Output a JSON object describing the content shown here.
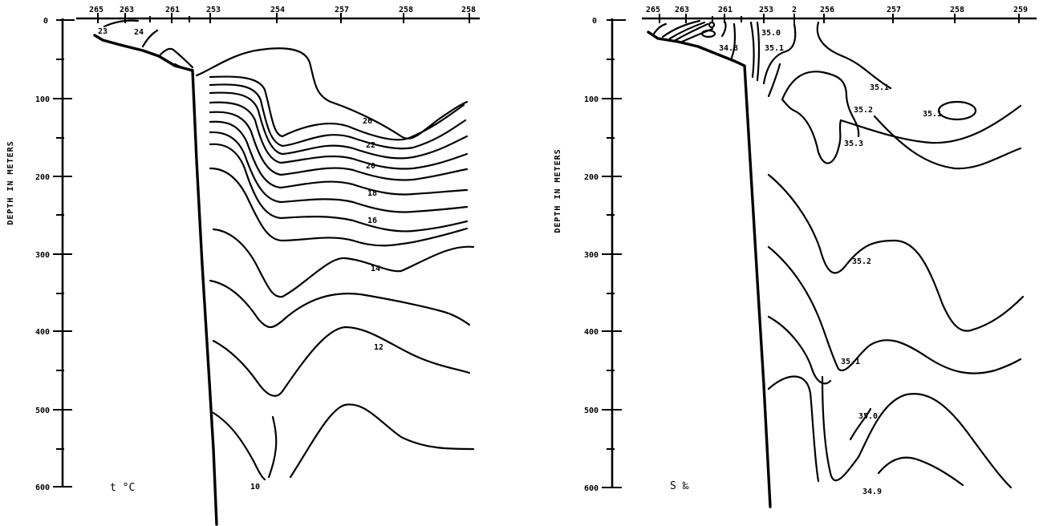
{
  "chart_data": [
    {
      "type": "contour",
      "panel": "temperature",
      "ylabel": "DEPTH IN METERS",
      "variable_label": "t °C",
      "y_ticks": [
        0,
        100,
        200,
        300,
        400,
        500,
        600
      ],
      "y_tick_labels": [
        "0",
        "100",
        "200",
        "300",
        "400",
        "500",
        "600"
      ],
      "ylim": [
        0,
        600
      ],
      "stations": [
        "265",
        "263",
        "261",
        "253",
        "254",
        "257",
        "258",
        "258"
      ],
      "contour_labels": [
        "23",
        "24",
        "26",
        "22",
        "20",
        "18",
        "16",
        "14",
        "12",
        "10"
      ]
    },
    {
      "type": "contour",
      "panel": "salinity",
      "ylabel": "DEPTH IN METERS",
      "variable_label": "S ‰",
      "y_ticks": [
        0,
        100,
        200,
        300,
        400,
        500,
        600
      ],
      "y_tick_labels": [
        "0",
        "100",
        "200",
        "300",
        "400",
        "500",
        "600"
      ],
      "ylim": [
        0,
        600
      ],
      "stations": [
        "265",
        "263",
        "261",
        "253",
        "2",
        "256",
        "257",
        "258",
        "259"
      ],
      "contour_labels": [
        "35.0",
        "34.8",
        "35.1",
        "35.1",
        "35.2",
        "35.1",
        "35.3",
        "35.2",
        "35.1",
        "35.0",
        "34.9"
      ]
    }
  ]
}
